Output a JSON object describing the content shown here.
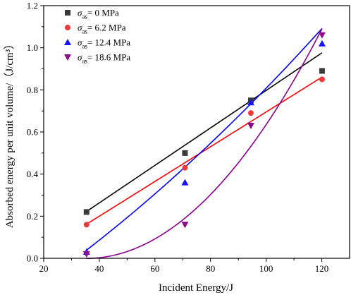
{
  "chart_data": {
    "type": "scatter",
    "xlabel": "Incident Energy/J",
    "ylabel": "Absorbed energy per unit volume/（J/cm³）",
    "xlim": [
      20,
      130
    ],
    "ylim": [
      0.0,
      1.2
    ],
    "x_ticks": [
      "20",
      "40",
      "60",
      "80",
      "100",
      "120"
    ],
    "y_ticks": [
      "0.0",
      "0.2",
      "0.4",
      "0.6",
      "0.8",
      "1.0",
      "1.2"
    ],
    "legend_position": "top-left",
    "series": [
      {
        "name": "σas= 0 MPa",
        "name_symbol": "σ",
        "name_sub": "as",
        "name_rest": "= 0 MPa",
        "color": "#3a3a3a",
        "marker": "square",
        "x": [
          35.4,
          70.8,
          94.5,
          120.1
        ],
        "y": [
          0.22,
          0.5,
          0.75,
          0.89
        ],
        "fit": "linear",
        "fit_color": "#000000",
        "fit_coef": [
          0.0089,
          -0.0927
        ]
      },
      {
        "name": "σas= 6.2 MPa",
        "name_symbol": "σ",
        "name_sub": "as",
        "name_rest": "= 6.2 MPa",
        "color": "#f03a3a",
        "marker": "circle",
        "x": [
          35.4,
          70.8,
          94.5,
          120.1
        ],
        "y": [
          0.16,
          0.43,
          0.69,
          0.85
        ],
        "fit": "linear",
        "fit_color": "#ff0000",
        "fit_coef": [
          0.00825,
          -0.13
        ]
      },
      {
        "name": "σas= 12.4 MPa",
        "name_symbol": "σ",
        "name_sub": "as",
        "name_rest": "= 12.4 MPa",
        "color": "#1414ff",
        "marker": "triangle-up",
        "x": [
          35.4,
          70.8,
          94.5,
          120.1
        ],
        "y": [
          0.03,
          0.36,
          0.74,
          1.02
        ],
        "fit": "quadratic",
        "fit_color": "#0000ff",
        "fit_coef": [
          2.62e-05,
          0.00836,
          -0.29
        ]
      },
      {
        "name": "σas= 18.6 MPa",
        "name_symbol": "σ",
        "name_sub": "as",
        "name_rest": "= 18.6 MPa",
        "color": "#8b0a8b",
        "marker": "triangle-down",
        "x": [
          35.4,
          70.8,
          94.5,
          120.1
        ],
        "y": [
          0.02,
          0.16,
          0.63,
          1.06
        ],
        "fit": "quadratic",
        "fit_color": "#8b008b",
        "fit_coef": [
          0.0001517,
          -0.0107,
          0.188
        ]
      }
    ]
  }
}
